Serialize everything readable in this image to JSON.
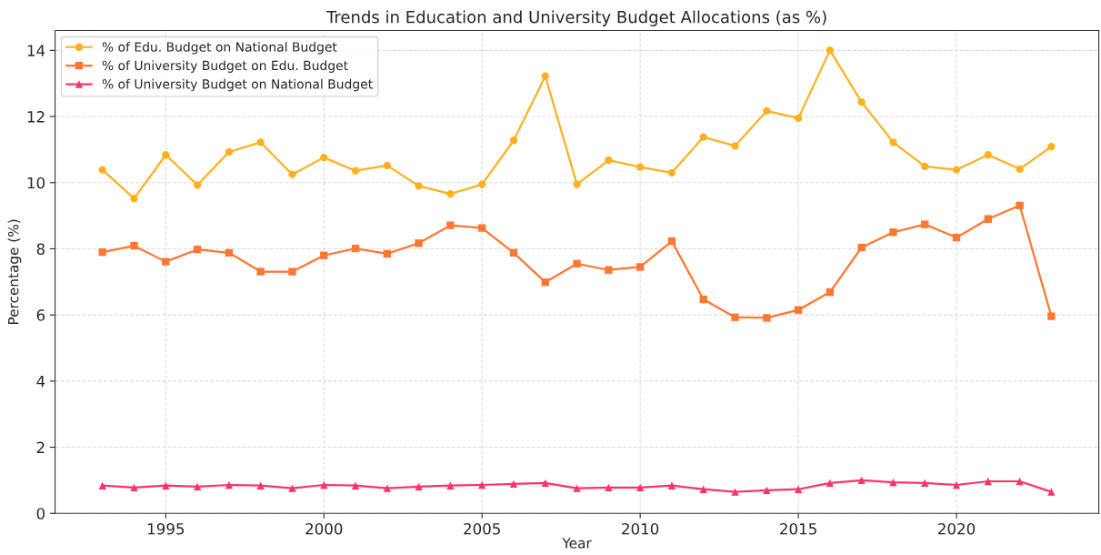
{
  "chart_data": {
    "type": "line",
    "title": "Trends in Education and University Budget Allocations (as %)",
    "xlabel": "Year",
    "ylabel": "Percentage (%)",
    "x": [
      1993,
      1994,
      1995,
      1996,
      1997,
      1998,
      1999,
      2000,
      2001,
      2002,
      2003,
      2004,
      2005,
      2006,
      2007,
      2008,
      2009,
      2010,
      2011,
      2012,
      2013,
      2014,
      2015,
      2016,
      2017,
      2018,
      2019,
      2020,
      2021,
      2022,
      2023
    ],
    "series": [
      {
        "name": "% of Edu. Budget on National Budget",
        "color": "#ffb01c",
        "marker": "circle",
        "values": [
          10.39,
          9.52,
          10.84,
          9.93,
          10.93,
          11.22,
          10.25,
          10.76,
          10.36,
          10.52,
          9.9,
          9.66,
          9.95,
          11.28,
          13.22,
          9.95,
          10.68,
          10.47,
          10.3,
          11.38,
          11.11,
          12.17,
          11.95,
          14.0,
          12.44,
          11.22,
          10.49,
          10.39,
          10.84,
          10.41,
          11.09
        ]
      },
      {
        "name": "% of University Budget on Edu. Budget",
        "color": "#ff7730",
        "marker": "square",
        "values": [
          7.9,
          8.09,
          7.61,
          7.98,
          7.88,
          7.31,
          7.31,
          7.8,
          8.01,
          7.85,
          8.17,
          8.71,
          8.63,
          7.88,
          6.99,
          7.55,
          7.36,
          7.45,
          8.23,
          6.47,
          5.93,
          5.91,
          6.15,
          6.69,
          8.04,
          8.5,
          8.74,
          8.34,
          8.9,
          9.31,
          5.96
        ]
      },
      {
        "name": "% of University Budget on National Budget",
        "color": "#ff3366",
        "marker": "triangle",
        "values": [
          0.84,
          0.78,
          0.84,
          0.81,
          0.86,
          0.84,
          0.76,
          0.86,
          0.84,
          0.76,
          0.81,
          0.84,
          0.86,
          0.89,
          0.92,
          0.76,
          0.78,
          0.78,
          0.84,
          0.73,
          0.65,
          0.7,
          0.73,
          0.92,
          1.0,
          0.94,
          0.92,
          0.86,
          0.97,
          0.97,
          0.65
        ]
      }
    ],
    "xlim": [
      1991.5,
      2024.5
    ],
    "ylim": [
      0,
      14.6
    ],
    "xticks": [
      1995,
      2000,
      2005,
      2010,
      2015,
      2020
    ],
    "yticks": [
      0,
      2,
      4,
      6,
      8,
      10,
      12,
      14
    ],
    "grid": true,
    "legend": "top left"
  }
}
